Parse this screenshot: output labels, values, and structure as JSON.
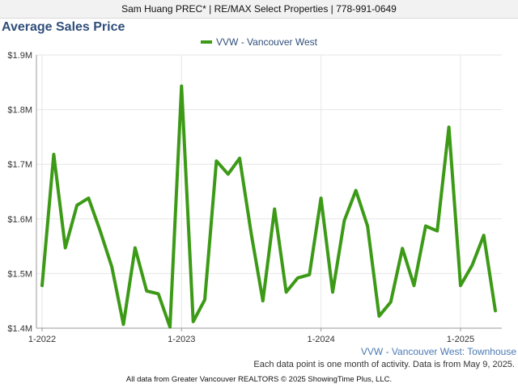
{
  "banner": "Sam Huang PREC* | RE/MAX Select Properties | 778-991-0649",
  "series_label": "VVW - Vancouver West: Townhouse",
  "note": "Each data point is one month of activity. Data is from May 9, 2025.",
  "footer": "All data from Greater Vancouver REALTORS © 2025 ShowingTime Plus, LLC.",
  "colors": {
    "line": "#3c9a17",
    "title": "#2f4e7a",
    "grid": "#e6e6e6"
  },
  "chart_data": {
    "type": "line",
    "title": "Average Sales Price",
    "legend_position": "top-center",
    "grid": true,
    "ylim": [
      1400000,
      1900000
    ],
    "y_ticks": [
      {
        "value": 1400000,
        "label": "$1.4M"
      },
      {
        "value": 1500000,
        "label": "$1.5M"
      },
      {
        "value": 1600000,
        "label": "$1.6M"
      },
      {
        "value": 1700000,
        "label": "$1.7M"
      },
      {
        "value": 1800000,
        "label": "$1.8M"
      },
      {
        "value": 1900000,
        "label": "$1.9M"
      }
    ],
    "x_ticks": [
      {
        "value": "2022-01",
        "label": "1-2022"
      },
      {
        "value": "2023-01",
        "label": "1-2023"
      },
      {
        "value": "2024-01",
        "label": "1-2024"
      },
      {
        "value": "2025-01",
        "label": "1-2025"
      }
    ],
    "x": [
      "2022-01",
      "2022-02",
      "2022-03",
      "2022-04",
      "2022-05",
      "2022-06",
      "2022-07",
      "2022-08",
      "2022-09",
      "2022-10",
      "2022-11",
      "2022-12",
      "2023-01",
      "2023-02",
      "2023-03",
      "2023-04",
      "2023-05",
      "2023-06",
      "2023-07",
      "2023-08",
      "2023-09",
      "2023-10",
      "2023-11",
      "2023-12",
      "2024-01",
      "2024-02",
      "2024-03",
      "2024-04",
      "2024-05",
      "2024-06",
      "2024-07",
      "2024-08",
      "2024-09",
      "2024-10",
      "2024-11",
      "2024-12",
      "2025-01",
      "2025-02",
      "2025-03",
      "2025-04"
    ],
    "series": [
      {
        "name": "VVW - Vancouver West",
        "values": [
          1478000,
          1718000,
          1547000,
          1625000,
          1638000,
          1578000,
          1512000,
          1407000,
          1547000,
          1468000,
          1463000,
          1402000,
          1843000,
          1412000,
          1452000,
          1706000,
          1682000,
          1711000,
          1572000,
          1450000,
          1618000,
          1466000,
          1492000,
          1498000,
          1638000,
          1466000,
          1597000,
          1652000,
          1587000,
          1422000,
          1448000,
          1546000,
          1478000,
          1587000,
          1578000,
          1768000,
          1478000,
          1515000,
          1570000,
          1432000
        ]
      }
    ]
  }
}
